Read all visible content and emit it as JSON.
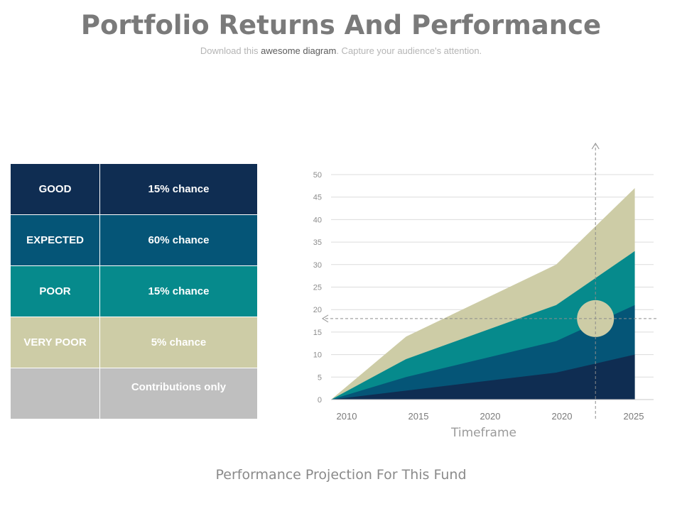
{
  "header": {
    "title": "Portfolio Returns And Performance",
    "subtitle_before": "Download this ",
    "subtitle_emph": "awesome diagram",
    "subtitle_after": ". Capture your audience's attention."
  },
  "scenario_table": {
    "rows": [
      {
        "label": "GOOD",
        "chance": "15% chance",
        "color": "#0f2d52"
      },
      {
        "label": "EXPECTED",
        "chance": "60% chance",
        "color": "#055577"
      },
      {
        "label": "POOR",
        "chance": "15% chance",
        "color": "#068a8c"
      },
      {
        "label": "VERY POOR",
        "chance": "5% chance",
        "color": "#cdcca6"
      },
      {
        "label": "",
        "chance": "Contributions only",
        "color": "#bfbfbf"
      }
    ]
  },
  "chart_data": {
    "type": "area",
    "stacked": true,
    "xlabel": "Timeframe",
    "ylabel": "",
    "ylim": [
      0,
      50
    ],
    "yticks": [
      0,
      5,
      10,
      15,
      20,
      25,
      30,
      35,
      40,
      45,
      50
    ],
    "x_tick_labels": [
      "2010",
      "2015",
      "2020",
      "2020",
      "2025"
    ],
    "grid": true,
    "x": [
      0,
      1,
      2,
      3,
      4,
      5
    ],
    "series": [
      {
        "name": "Contributions only",
        "values": [
          0,
          2,
          4,
          6,
          10
        ],
        "color": "#0f2d52",
        "x": [
          0,
          1.05,
          2.1,
          3.15,
          4.25
        ]
      },
      {
        "name": "EXPECTED",
        "values": [
          0,
          5,
          9,
          13,
          21
        ],
        "color": "#055577",
        "x": [
          0,
          1.05,
          2.1,
          3.15,
          4.25
        ]
      },
      {
        "name": "POOR",
        "values": [
          0,
          9,
          15,
          21,
          33
        ],
        "color": "#068a8c",
        "x": [
          0,
          1.05,
          2.1,
          3.15,
          4.25
        ]
      },
      {
        "name": "VERY POOR",
        "values": [
          0,
          14,
          22,
          30,
          47
        ],
        "color": "#cdcca6",
        "x": [
          0,
          1.05,
          2.1,
          3.15,
          4.25
        ]
      }
    ],
    "marker": {
      "x": 3.7,
      "y": 18,
      "color": "#cdcca6"
    }
  },
  "footer": {
    "caption": "Performance Projection For This Fund"
  }
}
